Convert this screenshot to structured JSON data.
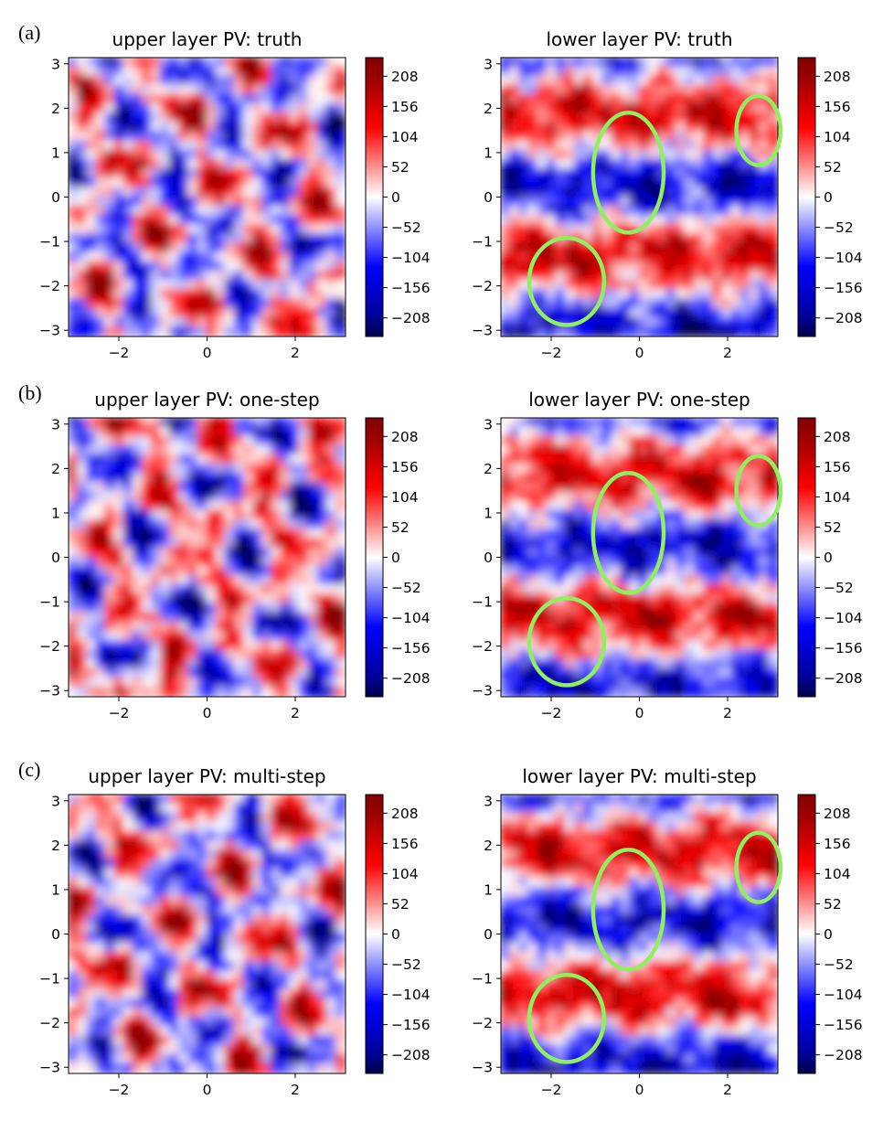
{
  "figure": {
    "row_labels": [
      "(a)",
      "(b)",
      "(c)"
    ],
    "highlight_color": "#90EE60",
    "colormap": {
      "name": "seismic",
      "low": "#00004c",
      "mid_low": "#0000ff",
      "mid": "#ffffff",
      "mid_high": "#ff0000",
      "high": "#800000"
    }
  },
  "chart_data": [
    {
      "type": "heatmap",
      "title": "upper layer PV: truth",
      "xlim": [
        -3.14,
        3.14
      ],
      "ylim": [
        -3.14,
        3.14
      ],
      "xticks": [
        -2,
        0,
        2
      ],
      "yticks": [
        -3,
        -2,
        -1,
        0,
        1,
        2,
        3
      ],
      "colorbar": {
        "range": [
          -240,
          240
        ],
        "ticks": [
          208,
          156,
          104,
          52,
          0,
          -52,
          -104,
          -156,
          -208
        ]
      },
      "highlight_ellipses": []
    },
    {
      "type": "heatmap",
      "title": "lower layer PV: truth",
      "xlim": [
        -3.14,
        3.14
      ],
      "ylim": [
        -3.14,
        3.14
      ],
      "xticks": [
        -2,
        0,
        2
      ],
      "yticks": [
        -3,
        -2,
        -1,
        0,
        1,
        2,
        3
      ],
      "colorbar": {
        "range": [
          -240,
          240
        ],
        "ticks": [
          208,
          156,
          104,
          52,
          0,
          -52,
          -104,
          -156,
          -208
        ]
      },
      "highlight_ellipses": [
        {
          "cx": -0.25,
          "cy": 0.55,
          "rx": 0.8,
          "ry": 1.35
        },
        {
          "cx": 2.7,
          "cy": 1.5,
          "rx": 0.5,
          "ry": 0.78
        },
        {
          "cx": -1.65,
          "cy": -1.9,
          "rx": 0.85,
          "ry": 0.98
        }
      ]
    },
    {
      "type": "heatmap",
      "title": "upper layer PV: one-step",
      "xlim": [
        -3.14,
        3.14
      ],
      "ylim": [
        -3.14,
        3.14
      ],
      "xticks": [
        -2,
        0,
        2
      ],
      "yticks": [
        -3,
        -2,
        -1,
        0,
        1,
        2,
        3
      ],
      "colorbar": {
        "range": [
          -240,
          240
        ],
        "ticks": [
          208,
          156,
          104,
          52,
          0,
          -52,
          -104,
          -156,
          -208
        ]
      },
      "highlight_ellipses": []
    },
    {
      "type": "heatmap",
      "title": "lower layer PV: one-step",
      "xlim": [
        -3.14,
        3.14
      ],
      "ylim": [
        -3.14,
        3.14
      ],
      "xticks": [
        -2,
        0,
        2
      ],
      "yticks": [
        -3,
        -2,
        -1,
        0,
        1,
        2,
        3
      ],
      "colorbar": {
        "range": [
          -240,
          240
        ],
        "ticks": [
          208,
          156,
          104,
          52,
          0,
          -52,
          -104,
          -156,
          -208
        ]
      },
      "highlight_ellipses": [
        {
          "cx": -0.25,
          "cy": 0.55,
          "rx": 0.8,
          "ry": 1.35
        },
        {
          "cx": 2.7,
          "cy": 1.5,
          "rx": 0.5,
          "ry": 0.78
        },
        {
          "cx": -1.65,
          "cy": -1.9,
          "rx": 0.85,
          "ry": 0.98
        }
      ]
    },
    {
      "type": "heatmap",
      "title": "upper layer PV: multi-step",
      "xlim": [
        -3.14,
        3.14
      ],
      "ylim": [
        -3.14,
        3.14
      ],
      "xticks": [
        -2,
        0,
        2
      ],
      "yticks": [
        -3,
        -2,
        -1,
        0,
        1,
        2,
        3
      ],
      "colorbar": {
        "range": [
          -240,
          240
        ],
        "ticks": [
          208,
          156,
          104,
          52,
          0,
          -52,
          -104,
          -156,
          -208
        ]
      },
      "highlight_ellipses": []
    },
    {
      "type": "heatmap",
      "title": "lower layer PV: multi-step",
      "xlim": [
        -3.14,
        3.14
      ],
      "ylim": [
        -3.14,
        3.14
      ],
      "xticks": [
        -2,
        0,
        2
      ],
      "yticks": [
        -3,
        -2,
        -1,
        0,
        1,
        2,
        3
      ],
      "colorbar": {
        "range": [
          -240,
          240
        ],
        "ticks": [
          208,
          156,
          104,
          52,
          0,
          -52,
          -104,
          -156,
          -208
        ]
      },
      "highlight_ellipses": [
        {
          "cx": -0.25,
          "cy": 0.55,
          "rx": 0.8,
          "ry": 1.35
        },
        {
          "cx": 2.7,
          "cy": 1.5,
          "rx": 0.5,
          "ry": 0.78
        },
        {
          "cx": -1.65,
          "cy": -1.9,
          "rx": 0.85,
          "ry": 0.98
        }
      ]
    }
  ]
}
